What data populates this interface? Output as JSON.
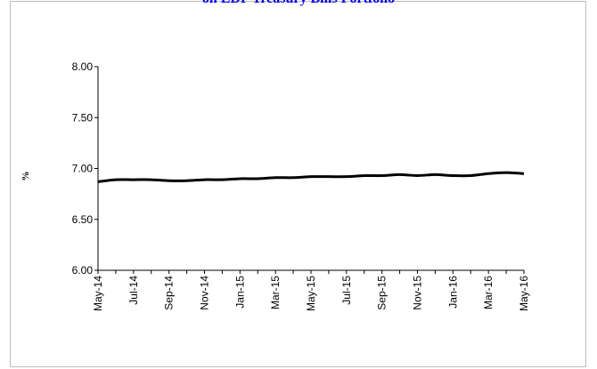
{
  "chart_data": {
    "type": "line",
    "title": "on EDF Treasury Bills Portfolio",
    "xlabel": "",
    "ylabel": "%",
    "ylim": [
      6.0,
      8.0
    ],
    "yticks": [
      "6.00",
      "6.50",
      "7.00",
      "7.50",
      "8.00"
    ],
    "xtick_labels": [
      "May-14",
      "Jul-14",
      "Sep-14",
      "Nov-14",
      "Jan-15",
      "Mar-15",
      "May-15",
      "Jul-15",
      "Sep-15",
      "Nov-15",
      "Jan-16",
      "Mar-16",
      "May-16"
    ],
    "x": [
      "May-14",
      "Jun-14",
      "Jul-14",
      "Aug-14",
      "Sep-14",
      "Oct-14",
      "Nov-14",
      "Dec-14",
      "Jan-15",
      "Feb-15",
      "Mar-15",
      "Apr-15",
      "May-15",
      "Jun-15",
      "Jul-15",
      "Aug-15",
      "Sep-15",
      "Oct-15",
      "Nov-15",
      "Dec-15",
      "Jan-16",
      "Feb-16",
      "Mar-16",
      "Apr-16",
      "May-16"
    ],
    "series": [
      {
        "values": [
          6.87,
          6.89,
          6.89,
          6.89,
          6.88,
          6.88,
          6.89,
          6.89,
          6.9,
          6.9,
          6.91,
          6.91,
          6.92,
          6.92,
          6.92,
          6.93,
          6.93,
          6.94,
          6.93,
          6.94,
          6.93,
          6.93,
          6.95,
          6.96,
          6.95
        ]
      }
    ],
    "grid": false,
    "legend": "none",
    "line_color": "#000000",
    "title_color": "#0000ff"
  }
}
